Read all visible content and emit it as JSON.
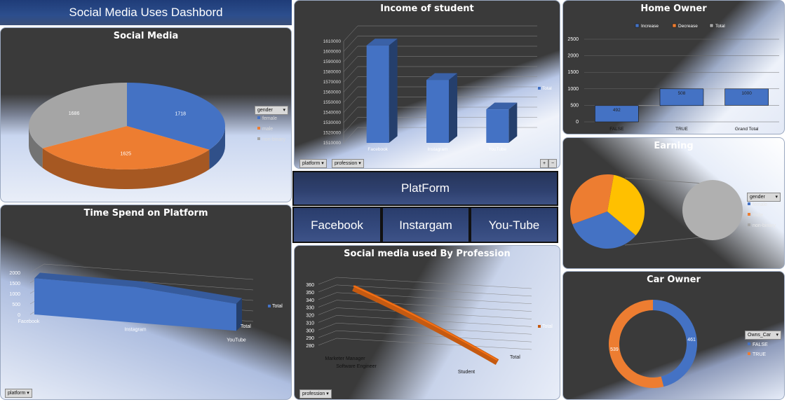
{
  "dashboard": {
    "title": "Social Media Uses Dashbord"
  },
  "colors": {
    "blue": "#4472c4",
    "orange": "#ed7d31",
    "gray": "#a5a5a5",
    "yellow": "#ffc000",
    "brown": "#c55a11"
  },
  "slicer": {
    "header": "PlatForm",
    "items": [
      "Facebook",
      "Instargam",
      "You-Tube"
    ]
  },
  "filters": {
    "platform": "platform",
    "profession": "profession",
    "gender": "gender",
    "owns_car": "Owns_Car"
  },
  "controls": {
    "plus": "+",
    "minus": "−"
  },
  "chart_data": [
    {
      "id": "social_media",
      "type": "pie",
      "title": "Social Media",
      "legend_title": "gender",
      "categories": [
        "female",
        "male",
        "non-binary"
      ],
      "values": [
        1718,
        1625,
        1686
      ],
      "legend_position": "right"
    },
    {
      "id": "income",
      "type": "bar",
      "title": "Income of student",
      "categories": [
        "Facebook",
        "Instagram",
        "YouTube"
      ],
      "series": [
        {
          "name": "Total",
          "values": [
            1606000,
            1572000,
            1543000
          ]
        }
      ],
      "ylim": [
        1510000,
        1610000
      ],
      "yticks": [
        "1510000",
        "1520000",
        "1530000",
        "1540000",
        "1550000",
        "1560000",
        "1570000",
        "1580000",
        "1590000",
        "1600000",
        "1610000"
      ],
      "legend_position": "right"
    },
    {
      "id": "home_owner",
      "type": "bar",
      "subtype": "waterfall",
      "title": "Home Owner",
      "legend": [
        "Increase",
        "Decrease",
        "Total"
      ],
      "categories": [
        "FALSE",
        "TRUE",
        "Grand Total"
      ],
      "values": [
        492,
        508,
        1000
      ],
      "ylim": [
        0,
        2500
      ],
      "yticks": [
        "0",
        "500",
        "1000",
        "1500",
        "2000",
        "2500"
      ],
      "legend_position": "top"
    },
    {
      "id": "time_spend",
      "type": "area",
      "title": "Time Spend on Platform",
      "categories": [
        "Facebook",
        "Instagram",
        "YouTube"
      ],
      "series": [
        {
          "name": "Total",
          "values": [
            1720,
            1700,
            1290
          ]
        }
      ],
      "ylim": [
        0,
        2000
      ],
      "yticks": [
        "0",
        "500",
        "1000",
        "1500",
        "2000"
      ],
      "legend_position": "right"
    },
    {
      "id": "earning",
      "type": "pie",
      "subtype": "pie-of-pie",
      "title": "Earning",
      "legend_title": "gender",
      "categories": [
        "female",
        "male",
        "non-binary"
      ],
      "legend_position": "right"
    },
    {
      "id": "profession",
      "type": "line",
      "title": "Social media used By Profession",
      "categories": [
        "Marketer Manager",
        "Software Engineer",
        "Student"
      ],
      "series": [
        {
          "name": "Total",
          "values": [
            346,
            322,
            290
          ]
        }
      ],
      "ylim": [
        280,
        360
      ],
      "yticks": [
        "280",
        "290",
        "300",
        "310",
        "320",
        "330",
        "340",
        "350",
        "360"
      ],
      "depth_label": "Total",
      "legend_position": "right"
    },
    {
      "id": "car_owner",
      "type": "pie",
      "subtype": "doughnut",
      "title": "Car Owner",
      "legend_title": "Owns_Car",
      "categories": [
        "FALSE",
        "TRUE"
      ],
      "values": [
        461,
        539
      ],
      "legend_position": "right"
    }
  ]
}
